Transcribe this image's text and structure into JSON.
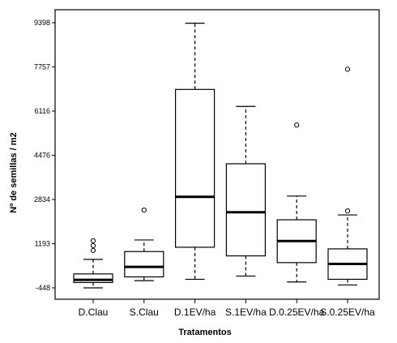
{
  "chart_data": {
    "type": "boxplot",
    "title": "",
    "xlabel": "Tratamentos",
    "ylabel": "Nº de semillas / m2",
    "y_ticks": [
      -448,
      1193,
      2834,
      4476,
      6116,
      7757,
      9398
    ],
    "ylim": [
      -448,
      9398
    ],
    "categories": [
      "D.Clau",
      "S.Clau",
      "D.1EV/ha",
      "S.1EV/ha",
      "D.0.25EV/ha",
      "S.0.25EV/ha"
    ],
    "boxes": [
      {
        "category": "D.Clau",
        "whisker_low": -448,
        "q1": -250,
        "median": -150,
        "q3": 70,
        "whisker_high": 610,
        "outliers": [
          940,
          1120,
          1300
        ]
      },
      {
        "category": "S.Clau",
        "whisker_low": -180,
        "q1": -40,
        "median": 330,
        "q3": 900,
        "whisker_high": 1330,
        "outliers": [
          2440
        ]
      },
      {
        "category": "D.1EV/ha",
        "whisker_low": -130,
        "q1": 1060,
        "median": 2930,
        "q3": 6920,
        "whisker_high": 9380,
        "outliers": []
      },
      {
        "category": "S.1EV/ha",
        "whisker_low": -10,
        "q1": 740,
        "median": 2360,
        "q3": 4160,
        "whisker_high": 6290,
        "outliers": []
      },
      {
        "category": "D.0.25EV/ha",
        "whisker_low": -230,
        "q1": 490,
        "median": 1290,
        "q3": 2080,
        "whisker_high": 2960,
        "outliers": [
          5600
        ]
      },
      {
        "category": "S.0.25EV/ha",
        "whisker_low": -340,
        "q1": -130,
        "median": 440,
        "q3": 1000,
        "whisker_high": 2260,
        "outliers": [
          2410,
          7670
        ]
      }
    ]
  }
}
